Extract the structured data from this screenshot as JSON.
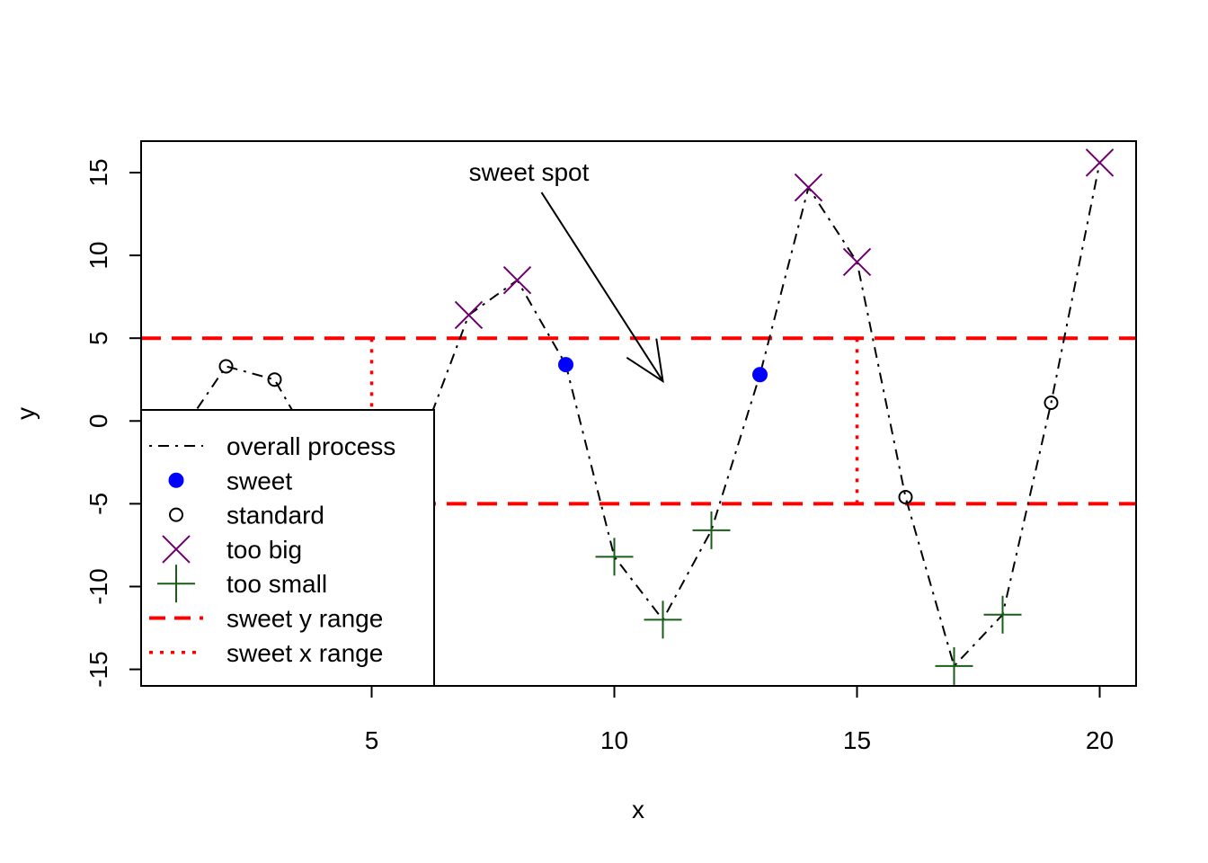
{
  "chart_data": {
    "type": "scatter",
    "title": "",
    "xlabel": "x",
    "ylabel": "y",
    "xlim": [
      0.25,
      20.75
    ],
    "ylim": [
      -16.0,
      16.9
    ],
    "x_ticks": [
      5,
      10,
      15,
      20
    ],
    "x_tick_labels": [
      "5",
      "10",
      "15",
      "20"
    ],
    "y_ticks": [
      -15,
      -10,
      -5,
      0,
      5,
      10,
      15
    ],
    "y_tick_labels": [
      "-15",
      "-10",
      "-5",
      "0",
      "5",
      "10",
      "15"
    ],
    "grid": false,
    "legend_position": "bottom-left",
    "series": [
      {
        "name": "overall process",
        "kind": "line",
        "style": "dotdash",
        "color": "#000000",
        "x": [
          1,
          2,
          3,
          4,
          5,
          6,
          7,
          8,
          9,
          10,
          11,
          12,
          13,
          14,
          15,
          16,
          17,
          18,
          19,
          20
        ],
        "y": [
          -1.0,
          3.3,
          2.5,
          -2.6,
          -3.2,
          -1.4,
          6.4,
          8.5,
          3.4,
          -8.2,
          -12.0,
          -6.6,
          2.8,
          14.1,
          9.6,
          -4.6,
          -14.8,
          -11.7,
          1.1,
          15.6
        ]
      },
      {
        "name": "sweet",
        "kind": "points",
        "marker": "filled-circle",
        "color": "#0000ff",
        "x": [
          9,
          13
        ],
        "y": [
          3.4,
          2.8
        ]
      },
      {
        "name": "standard",
        "kind": "points",
        "marker": "open-circle",
        "color": "#000000",
        "x": [
          1,
          2,
          3,
          4,
          5,
          6,
          16,
          19
        ],
        "y": [
          -1.0,
          3.3,
          2.5,
          -2.6,
          -3.2,
          -1.4,
          -4.6,
          1.1
        ]
      },
      {
        "name": "too big",
        "kind": "points",
        "marker": "cross-x",
        "color": "#6e006e",
        "x": [
          7,
          8,
          14,
          15,
          20
        ],
        "y": [
          6.4,
          8.5,
          14.1,
          9.6,
          15.6
        ]
      },
      {
        "name": "too small",
        "kind": "points",
        "marker": "plus",
        "color": "#1a5c1a",
        "x": [
          10,
          11,
          12,
          17,
          18
        ],
        "y": [
          -8.2,
          -12.0,
          -6.6,
          -14.8,
          -11.7
        ]
      },
      {
        "name": "sweet y range",
        "kind": "hlines",
        "style": "dashed",
        "color": "#ff0000",
        "y": [
          5,
          -5
        ]
      },
      {
        "name": "sweet x range",
        "kind": "vsegments",
        "style": "dotted",
        "color": "#ff0000",
        "segments": [
          {
            "x": 5,
            "y0": -5,
            "y1": 5
          },
          {
            "x": 15,
            "y0": -5,
            "y1": 5
          }
        ]
      }
    ],
    "annotations": [
      {
        "text": "sweet spot",
        "x": 8.5,
        "y": 15.0,
        "arrow_from": [
          8.5,
          13.8
        ],
        "arrow_to": [
          11.0,
          2.4
        ]
      }
    ],
    "legend": [
      {
        "label": "overall process",
        "ref": 0
      },
      {
        "label": "sweet",
        "ref": 1
      },
      {
        "label": "standard",
        "ref": 2
      },
      {
        "label": "too big",
        "ref": 3
      },
      {
        "label": "too small",
        "ref": 4
      },
      {
        "label": "sweet y range",
        "ref": 5
      },
      {
        "label": "sweet x range",
        "ref": 6
      }
    ]
  }
}
